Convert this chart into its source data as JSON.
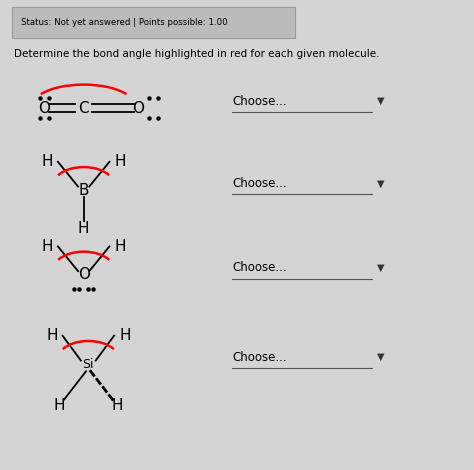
{
  "bg_color": "#d4d4d4",
  "header_text": "Status: Not yet answered | Points possible: 1.00",
  "title_text": "Determine the bond angle highlighted in red for each given molecule.",
  "choose_label": "Choose...",
  "choose_line_color": "#555555",
  "arrow_color": "#333333"
}
